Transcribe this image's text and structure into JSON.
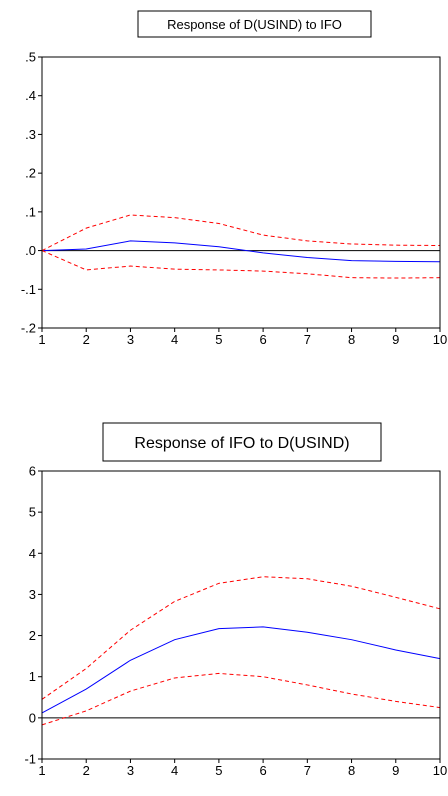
{
  "chart_data": [
    {
      "type": "line",
      "title": "Response of D(USIND) to IFO",
      "xlabel": "",
      "ylabel": "",
      "x": [
        1,
        2,
        3,
        4,
        5,
        6,
        7,
        8,
        9,
        10
      ],
      "x_tick_labels": [
        "1",
        "2",
        "3",
        "4",
        "5",
        "6",
        "7",
        "8",
        "9",
        "10"
      ],
      "ylim": [
        -0.2,
        0.5
      ],
      "y_ticks": [
        -0.2,
        -0.1,
        0.0,
        0.1,
        0.2,
        0.3,
        0.4,
        0.5
      ],
      "y_tick_labels": [
        "-.2",
        "-.1",
        ".0",
        ".1",
        ".2",
        ".3",
        ".4",
        ".5"
      ],
      "zero_line": true,
      "grid": false,
      "series": [
        {
          "role": "response",
          "style": "solid",
          "color": "#0000ff",
          "values": [
            0.0,
            0.004,
            0.025,
            0.02,
            0.01,
            -0.006,
            -0.018,
            -0.026,
            -0.028,
            -0.029
          ]
        },
        {
          "role": "upper-band",
          "style": "dashed",
          "color": "#ff0000",
          "values": [
            0.0,
            0.058,
            0.092,
            0.085,
            0.07,
            0.04,
            0.025,
            0.017,
            0.014,
            0.013
          ]
        },
        {
          "role": "lower-band",
          "style": "dashed",
          "color": "#ff0000",
          "values": [
            0.0,
            -0.05,
            -0.04,
            -0.048,
            -0.05,
            -0.053,
            -0.06,
            -0.07,
            -0.071,
            -0.07
          ]
        }
      ]
    },
    {
      "type": "line",
      "title": "Response of IFO to D(USIND)",
      "xlabel": "",
      "ylabel": "",
      "x": [
        1,
        2,
        3,
        4,
        5,
        6,
        7,
        8,
        9,
        10
      ],
      "x_tick_labels": [
        "1",
        "2",
        "3",
        "4",
        "5",
        "6",
        "7",
        "8",
        "9",
        "10"
      ],
      "ylim": [
        -1,
        6
      ],
      "y_ticks": [
        -1,
        0,
        1,
        2,
        3,
        4,
        5,
        6
      ],
      "y_tick_labels": [
        "-1",
        "0",
        "1",
        "2",
        "3",
        "4",
        "5",
        "6"
      ],
      "zero_line": true,
      "grid": false,
      "series": [
        {
          "role": "response",
          "style": "solid",
          "color": "#0000ff",
          "values": [
            0.12,
            0.7,
            1.4,
            1.9,
            2.17,
            2.21,
            2.08,
            1.9,
            1.65,
            1.44
          ]
        },
        {
          "role": "upper-band",
          "style": "dashed",
          "color": "#ff0000",
          "values": [
            0.45,
            1.2,
            2.13,
            2.83,
            3.27,
            3.43,
            3.38,
            3.2,
            2.93,
            2.65
          ]
        },
        {
          "role": "lower-band",
          "style": "dashed",
          "color": "#ff0000",
          "values": [
            -0.17,
            0.17,
            0.65,
            0.97,
            1.08,
            1.0,
            0.8,
            0.58,
            0.4,
            0.25
          ]
        }
      ]
    }
  ]
}
